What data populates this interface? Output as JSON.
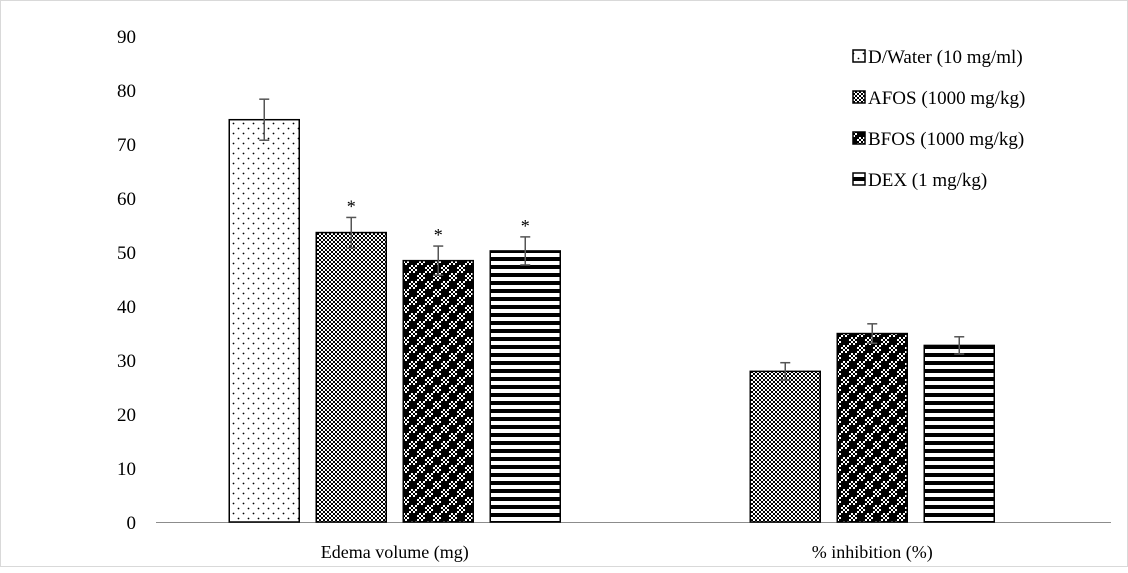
{
  "chart_data": {
    "type": "bar",
    "categories": [
      "Edema volume (mg)",
      "% inhibition (%)"
    ],
    "series": [
      {
        "name": "D/Water (10 mg/ml)",
        "pattern": "dots",
        "values": [
          74.5,
          null
        ],
        "errors": [
          3.8,
          null
        ],
        "marks": [
          "",
          ""
        ]
      },
      {
        "name": "AFOS (1000 mg/kg)",
        "pattern": "fine-check",
        "values": [
          53.6,
          27.9
        ],
        "errors": [
          2.8,
          1.6
        ],
        "marks": [
          "*",
          ""
        ]
      },
      {
        "name": "BFOS (1000 mg/kg)",
        "pattern": "big-check",
        "values": [
          48.4,
          34.9
        ],
        "errors": [
          2.7,
          1.8
        ],
        "marks": [
          "*",
          ""
        ]
      },
      {
        "name": "DEX (1 mg/kg)",
        "pattern": "horizontal-stripes",
        "values": [
          50.2,
          32.7
        ],
        "errors": [
          2.6,
          1.6
        ],
        "marks": [
          "*",
          ""
        ]
      }
    ],
    "yticks": [
      "0",
      "10",
      "20",
      "30",
      "40",
      "50",
      "60",
      "70",
      "80",
      "90"
    ],
    "ylim": [
      0,
      90
    ],
    "xlabel": "",
    "ylabel": "",
    "grid": false,
    "legend_position": "top-right"
  }
}
